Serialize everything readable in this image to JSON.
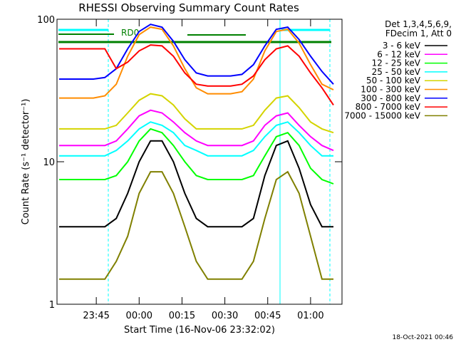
{
  "chart_data": {
    "type": "line",
    "title": "RHESSI Observing Summary Count Rates",
    "x_label": "Start Time (16-Nov-06 23:32:02)",
    "y_label": "Count Rate (s⁻¹ detector⁻¹)",
    "legend_header": [
      "Det 1,3,4,5,6,9,",
      "FDecim 1, Att 0"
    ],
    "annotations": [
      "RD0"
    ],
    "footer": "18-Oct-2021 00:46",
    "log_y": true,
    "xlim": [
      -28.75,
      71
    ],
    "xticks": [
      {
        "value": -15,
        "label": "23:45"
      },
      {
        "value": 0,
        "label": "00:00"
      },
      {
        "value": 15,
        "label": "00:15"
      },
      {
        "value": 30,
        "label": "00:30"
      },
      {
        "value": 45,
        "label": "00:45"
      },
      {
        "value": 60,
        "label": "01:00"
      }
    ],
    "ylim": [
      1,
      100
    ],
    "yticks": [
      1,
      10,
      100
    ],
    "x": [
      -28,
      -24,
      -20,
      -16,
      -12,
      -8,
      -4,
      0,
      4,
      8,
      12,
      16,
      20,
      24,
      28,
      32,
      36,
      40,
      44,
      48,
      52,
      56,
      60,
      64,
      68
    ],
    "series": [
      {
        "name": "3 - 6 keV",
        "color": "#000000",
        "values": [
          3.5,
          3.5,
          3.5,
          3.5,
          3.5,
          4,
          6,
          10,
          14,
          14,
          10,
          6,
          4,
          3.5,
          3.5,
          3.5,
          3.5,
          4,
          8,
          13,
          14,
          9,
          5,
          3.5,
          3.5
        ]
      },
      {
        "name": "6 - 12 keV",
        "color": "#ff00ff",
        "values": [
          13,
          13,
          13,
          13,
          13,
          14,
          17,
          21,
          23,
          22,
          19,
          16,
          14,
          13,
          13,
          13,
          13,
          14,
          18,
          21,
          22,
          18,
          15,
          13,
          12
        ]
      },
      {
        "name": "12 - 25 keV",
        "color": "#00ff00",
        "values": [
          7.5,
          7.5,
          7.5,
          7.5,
          7.5,
          8,
          10,
          14,
          17,
          16,
          13,
          10,
          8,
          7.5,
          7.5,
          7.5,
          7.5,
          8,
          11,
          15,
          16,
          13,
          9,
          7.5,
          7
        ]
      },
      {
        "name": "25 - 50 keV",
        "color": "#00ffff",
        "values": [
          11,
          11,
          11,
          11,
          11,
          12,
          14,
          17,
          19,
          18,
          16,
          13,
          12,
          11,
          11,
          11,
          11,
          12,
          15,
          18,
          19,
          16,
          13,
          11,
          11
        ]
      },
      {
        "name": "50 - 100 keV",
        "color": "#d4d400",
        "values": [
          17,
          17,
          17,
          17,
          17,
          18,
          22,
          27,
          30,
          29,
          25,
          20,
          17,
          17,
          17,
          17,
          17,
          18,
          23,
          28,
          29,
          24,
          19,
          17,
          16
        ]
      },
      {
        "name": "100 - 300 keV",
        "color": "#ff8c00",
        "values": [
          28,
          28,
          28,
          28,
          29,
          35,
          55,
          78,
          88,
          85,
          65,
          45,
          33,
          30,
          30,
          30,
          31,
          38,
          60,
          82,
          85,
          68,
          48,
          35,
          32
        ]
      },
      {
        "name": "300 - 800 keV",
        "color": "#0000ff",
        "values": [
          38,
          38,
          38,
          38,
          39,
          45,
          62,
          82,
          92,
          88,
          70,
          52,
          42,
          40,
          40,
          40,
          41,
          48,
          65,
          85,
          88,
          72,
          55,
          43,
          35
        ]
      },
      {
        "name": "800 - 7000 keV",
        "color": "#ff0000",
        "values": [
          62,
          62,
          62,
          62,
          62,
          45,
          50,
          60,
          66,
          65,
          55,
          42,
          35,
          34,
          34,
          34,
          35,
          40,
          52,
          62,
          65,
          55,
          42,
          33,
          25
        ]
      },
      {
        "name": "7000 - 15000 keV",
        "color": "#808000",
        "values": [
          1.5,
          1.5,
          1.5,
          1.5,
          1.5,
          2,
          3,
          6,
          8.5,
          8.5,
          6,
          3.5,
          2,
          1.5,
          1.5,
          1.5,
          1.5,
          2,
          4,
          7.5,
          8.5,
          6,
          3,
          1.5,
          1.5
        ]
      }
    ]
  }
}
